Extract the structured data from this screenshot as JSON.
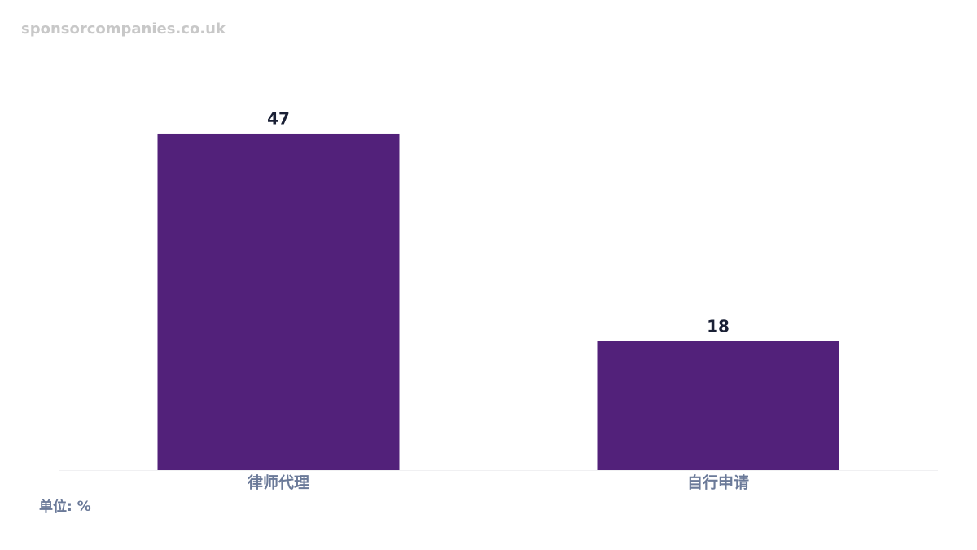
{
  "chart_data": {
    "type": "bar",
    "watermark": "sponsorcompanies.co.uk",
    "unit_label": "单位: %",
    "categories": [
      "律师代理",
      "自行申请"
    ],
    "values": [
      47,
      18
    ],
    "color": "#52217a",
    "ylim": [
      0,
      50
    ]
  }
}
